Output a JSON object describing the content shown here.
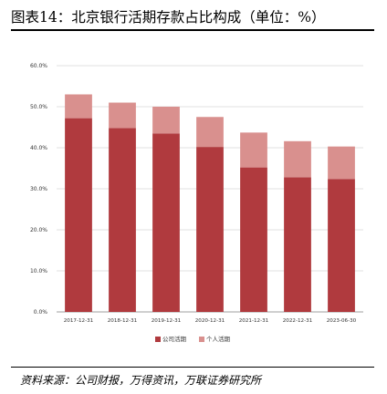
{
  "title": "图表14：北京银行活期存款占比构成（单位：%）",
  "source": "资料来源：公司财报，万得资讯，万联证券研究所",
  "colors": {
    "corporate": "#b03a3e",
    "personal": "#d9908e"
  },
  "chart_data": {
    "type": "bar",
    "stacked": true,
    "categories": [
      "2017-12-31",
      "2018-12-31",
      "2019-12-31",
      "2020-12-31",
      "2021-12-31",
      "2022-12-31",
      "2023-06-30"
    ],
    "series": [
      {
        "name": "公司活期",
        "values": [
          47.2,
          44.8,
          43.5,
          40.2,
          35.2,
          32.8,
          32.4
        ]
      },
      {
        "name": "个人活期",
        "values": [
          5.8,
          6.2,
          6.5,
          7.3,
          8.5,
          8.8,
          7.9
        ]
      }
    ],
    "yticks": [
      "0.0%",
      "10.0%",
      "20.0%",
      "30.0%",
      "40.0%",
      "50.0%",
      "60.0%"
    ],
    "ylim": [
      0,
      60
    ],
    "grid": true,
    "legend": "bottom"
  }
}
